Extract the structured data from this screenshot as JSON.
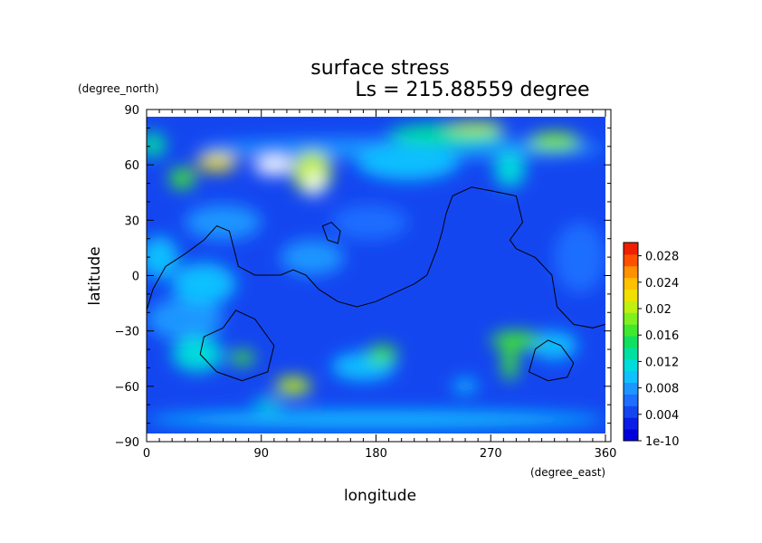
{
  "chart_data": {
    "type": "heatmap",
    "title": "surface stress",
    "subtitle": "Ls = 215.88559 degree",
    "xlabel": "longitude",
    "ylabel": "latitude",
    "x_unit": "(degree_east)",
    "y_unit": "(degree_north)",
    "xlim": [
      0,
      360
    ],
    "ylim": [
      -90,
      90
    ],
    "x_ticks": [
      0,
      90,
      180,
      270,
      360
    ],
    "x_tick_labels": [
      "0",
      "90",
      "180",
      "270",
      "360"
    ],
    "y_ticks": [
      90,
      60,
      30,
      0,
      -30,
      -60,
      -90
    ],
    "y_tick_labels": [
      "90",
      "60",
      "30",
      "0",
      "−30",
      "−60",
      "−90"
    ],
    "colorbar": {
      "ticks": [
        0.028,
        0.024,
        0.02,
        0.016,
        0.012,
        0.008,
        0.004,
        0
      ],
      "tick_labels": [
        "0.028",
        "0.024",
        "0.02",
        "0.016",
        "0.012",
        "0.008",
        "0.004",
        "1e-10"
      ],
      "range": [
        0,
        0.03
      ],
      "colors": [
        "#0000dd",
        "#0a1ee6",
        "#1446f0",
        "#1e6eff",
        "#1e96ff",
        "#10c0ff",
        "#00dcdc",
        "#00e0a0",
        "#10e060",
        "#40e830",
        "#80f020",
        "#c0f010",
        "#f0e000",
        "#ffc000",
        "#ff9000",
        "#ff5000",
        "#ee2000"
      ]
    },
    "hotspots": [
      {
        "lon": 100,
        "lat": 62,
        "value": 0.032,
        "rx": 16,
        "ry": 5
      },
      {
        "lon": 132,
        "lat": 52,
        "value": 0.031,
        "rx": 6,
        "ry": 7
      },
      {
        "lon": 55,
        "lat": 64,
        "value": 0.022,
        "rx": 16,
        "ry": 5
      },
      {
        "lon": 28,
        "lat": 55,
        "value": 0.016,
        "rx": 10,
        "ry": 6
      },
      {
        "lon": 130,
        "lat": 58,
        "value": 0.02,
        "rx": 15,
        "ry": 12
      },
      {
        "lon": 235,
        "lat": 80,
        "value": 0.013,
        "rx": 45,
        "ry": 6
      },
      {
        "lon": 258,
        "lat": 84,
        "value": 0.021,
        "rx": 22,
        "ry": 3
      },
      {
        "lon": 320,
        "lat": 76,
        "value": 0.018,
        "rx": 20,
        "ry": 5
      },
      {
        "lon": 5,
        "lat": 74,
        "value": 0.013,
        "rx": 10,
        "ry": 7
      },
      {
        "lon": 205,
        "lat": 64,
        "value": 0.01,
        "rx": 40,
        "ry": 10
      },
      {
        "lon": 285,
        "lat": 60,
        "value": 0.012,
        "rx": 12,
        "ry": 10
      },
      {
        "lon": 115,
        "lat": -63,
        "value": 0.02,
        "rx": 14,
        "ry": 5
      },
      {
        "lon": 75,
        "lat": -47,
        "value": 0.016,
        "rx": 10,
        "ry": 4
      },
      {
        "lon": 40,
        "lat": -45,
        "value": 0.012,
        "rx": 20,
        "ry": 10
      },
      {
        "lon": 95,
        "lat": -73,
        "value": 0.012,
        "rx": 12,
        "ry": 3
      },
      {
        "lon": 185,
        "lat": -45,
        "value": 0.016,
        "rx": 12,
        "ry": 5
      },
      {
        "lon": 170,
        "lat": -52,
        "value": 0.01,
        "rx": 25,
        "ry": 8
      },
      {
        "lon": 290,
        "lat": -37,
        "value": 0.016,
        "rx": 20,
        "ry": 5
      },
      {
        "lon": 285,
        "lat": -50,
        "value": 0.016,
        "rx": 6,
        "ry": 10
      },
      {
        "lon": 320,
        "lat": -40,
        "value": 0.01,
        "rx": 18,
        "ry": 8
      },
      {
        "lon": 250,
        "lat": -63,
        "value": 0.01,
        "rx": 10,
        "ry": 4
      },
      {
        "lon": 45,
        "lat": -5,
        "value": 0.01,
        "rx": 25,
        "ry": 12
      },
      {
        "lon": 30,
        "lat": -25,
        "value": 0.008,
        "rx": 30,
        "ry": 12
      },
      {
        "lon": 10,
        "lat": 10,
        "value": 0.009,
        "rx": 15,
        "ry": 12
      },
      {
        "lon": 130,
        "lat": 10,
        "value": 0.008,
        "rx": 25,
        "ry": 10
      },
      {
        "lon": 175,
        "lat": 30,
        "value": 0.007,
        "rx": 30,
        "ry": 10
      },
      {
        "lon": 340,
        "lat": 10,
        "value": 0.007,
        "rx": 20,
        "ry": 20
      },
      {
        "lon": 180,
        "lat": -82,
        "value": 0.01,
        "rx": 180,
        "ry": 5
      },
      {
        "lon": 200,
        "lat": 72,
        "value": 0.008,
        "rx": 160,
        "ry": 6
      },
      {
        "lon": 60,
        "lat": 30,
        "value": 0.008,
        "rx": 30,
        "ry": 10
      }
    ],
    "contours": [
      [
        [
          0,
          -20
        ],
        [
          5,
          -8
        ],
        [
          15,
          5
        ],
        [
          30,
          12
        ],
        [
          45,
          20
        ],
        [
          55,
          28
        ],
        [
          65,
          25
        ],
        [
          72,
          5
        ],
        [
          85,
          0
        ],
        [
          105,
          0
        ],
        [
          115,
          3
        ],
        [
          125,
          0
        ],
        [
          135,
          -8
        ],
        [
          150,
          -15
        ],
        [
          165,
          -18
        ],
        [
          180,
          -15
        ],
        [
          195,
          -10
        ],
        [
          210,
          -5
        ],
        [
          220,
          0
        ],
        [
          228,
          15
        ],
        [
          232,
          25
        ],
        [
          235,
          35
        ],
        [
          240,
          45
        ],
        [
          255,
          50
        ],
        [
          270,
          48
        ],
        [
          290,
          45
        ],
        [
          295,
          30
        ],
        [
          285,
          20
        ],
        [
          290,
          15
        ],
        [
          305,
          10
        ],
        [
          318,
          0
        ],
        [
          322,
          -18
        ],
        [
          335,
          -28
        ],
        [
          350,
          -30
        ],
        [
          360,
          -28
        ]
      ],
      [
        [
          142,
          20
        ],
        [
          138,
          28
        ],
        [
          145,
          30
        ],
        [
          152,
          25
        ],
        [
          150,
          18
        ],
        [
          142,
          20
        ]
      ],
      [
        [
          60,
          -30
        ],
        [
          70,
          -20
        ],
        [
          85,
          -25
        ],
        [
          100,
          -40
        ],
        [
          95,
          -55
        ],
        [
          75,
          -60
        ],
        [
          55,
          -55
        ],
        [
          42,
          -45
        ],
        [
          45,
          -35
        ],
        [
          60,
          -30
        ]
      ],
      [
        [
          305,
          -42
        ],
        [
          315,
          -37
        ],
        [
          325,
          -40
        ],
        [
          335,
          -50
        ],
        [
          330,
          -58
        ],
        [
          315,
          -60
        ],
        [
          300,
          -55
        ],
        [
          305,
          -42
        ]
      ]
    ]
  }
}
